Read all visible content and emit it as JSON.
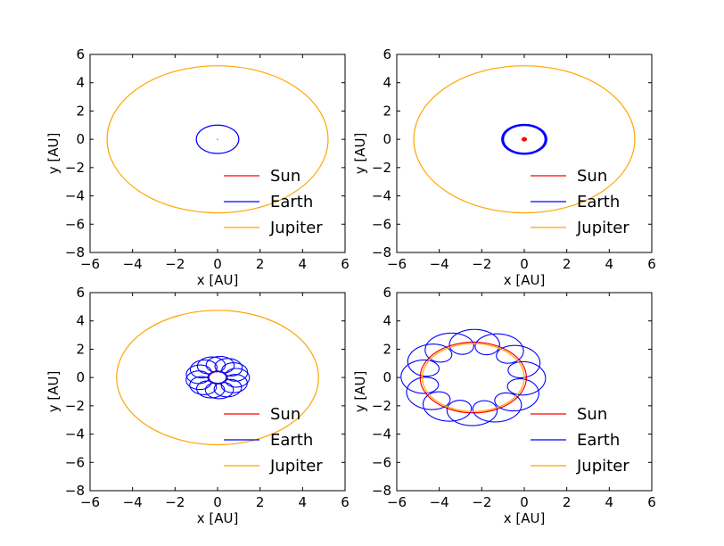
{
  "colors": {
    "sun": "#ff0000",
    "earth": "#0000ff",
    "jupiter": "#ffa500",
    "axes": "#000000",
    "background": "#ffffff"
  },
  "chart_data": [
    {
      "type": "line",
      "xlabel": "x [AU]",
      "ylabel": "y [AU]",
      "xlim": [
        -6,
        6
      ],
      "ylim": [
        -8,
        6
      ],
      "xticks": [
        "−6",
        "−4",
        "−2",
        "0",
        "2",
        "4",
        "6"
      ],
      "yticks": [
        "−8",
        "−6",
        "−4",
        "−2",
        "0",
        "2",
        "4",
        "6"
      ],
      "grid": false,
      "legend": "lower-right",
      "series": [
        {
          "name": "Sun",
          "color": "#ff0000",
          "shape": "point",
          "center": [
            0,
            0
          ]
        },
        {
          "name": "Earth",
          "color": "#0000ff",
          "shape": "ellipse",
          "center": [
            0,
            0
          ],
          "rx": 1.0,
          "ry": 1.0
        },
        {
          "name": "Jupiter",
          "color": "#ffa500",
          "shape": "ellipse",
          "center": [
            0,
            0
          ],
          "rx": 5.2,
          "ry": 5.2
        }
      ]
    },
    {
      "type": "line",
      "xlabel": "x [AU]",
      "ylabel": "y [AU]",
      "xlim": [
        -6,
        6
      ],
      "ylim": [
        -8,
        6
      ],
      "xticks": [
        "−6",
        "−4",
        "−2",
        "0",
        "2",
        "4",
        "6"
      ],
      "yticks": [
        "−8",
        "−6",
        "−4",
        "−2",
        "0",
        "2",
        "4",
        "6"
      ],
      "grid": false,
      "legend": "lower-right",
      "series": [
        {
          "name": "Sun",
          "color": "#ff0000",
          "shape": "ellipse",
          "center": [
            0,
            0
          ],
          "rx": 0.08,
          "ry": 0.08
        },
        {
          "name": "Earth",
          "color": "#0000ff",
          "shape": "band",
          "center": [
            0,
            0
          ],
          "rx": 1.02,
          "ry": 1.02,
          "spread": 0.08
        },
        {
          "name": "Jupiter",
          "color": "#ffa500",
          "shape": "ellipse",
          "center": [
            0,
            0
          ],
          "rx": 5.2,
          "ry": 5.2
        }
      ]
    },
    {
      "type": "line",
      "xlabel": "x [AU]",
      "ylabel": "y [AU]",
      "xlim": [
        -6,
        6
      ],
      "ylim": [
        -8,
        6
      ],
      "xticks": [
        "−6",
        "−4",
        "−2",
        "0",
        "2",
        "4",
        "6"
      ],
      "yticks": [
        "−8",
        "−6",
        "−4",
        "−2",
        "0",
        "2",
        "4",
        "6"
      ],
      "grid": false,
      "legend": "lower-right",
      "series": [
        {
          "name": "Sun",
          "color": "#ff0000",
          "shape": "ellipse",
          "center": [
            0,
            0
          ],
          "rx": 0.45,
          "ry": 0.45
        },
        {
          "name": "Earth",
          "color": "#0000ff",
          "shape": "loops",
          "center": [
            0,
            0
          ],
          "R": 0.95,
          "r": 0.55,
          "turns": 14
        },
        {
          "name": "Jupiter",
          "color": "#ffa500",
          "shape": "ellipse",
          "center": [
            0,
            0
          ],
          "rx": 4.75,
          "ry": 4.75
        }
      ]
    },
    {
      "type": "line",
      "xlabel": "x [AU]",
      "ylabel": "y [AU]",
      "xlim": [
        -6,
        6
      ],
      "ylim": [
        -8,
        6
      ],
      "xticks": [
        "−6",
        "−4",
        "−2",
        "0",
        "2",
        "4",
        "6"
      ],
      "yticks": [
        "−8",
        "−6",
        "−4",
        "−2",
        "0",
        "2",
        "4",
        "6"
      ],
      "grid": false,
      "legend": "lower-right",
      "series": [
        {
          "name": "Sun",
          "color": "#ff0000",
          "shape": "ellipse",
          "center": [
            -2.4,
            0
          ],
          "rx": 2.5,
          "ry": 2.5
        },
        {
          "name": "Earth",
          "color": "#0000ff",
          "shape": "loops",
          "center": [
            -2.4,
            0
          ],
          "R": 2.55,
          "r": 0.85,
          "turns": 13
        },
        {
          "name": "Jupiter",
          "color": "#ffa500",
          "shape": "ellipse",
          "center": [
            -2.4,
            0
          ],
          "rx": 2.4,
          "ry": 2.4
        }
      ]
    }
  ]
}
